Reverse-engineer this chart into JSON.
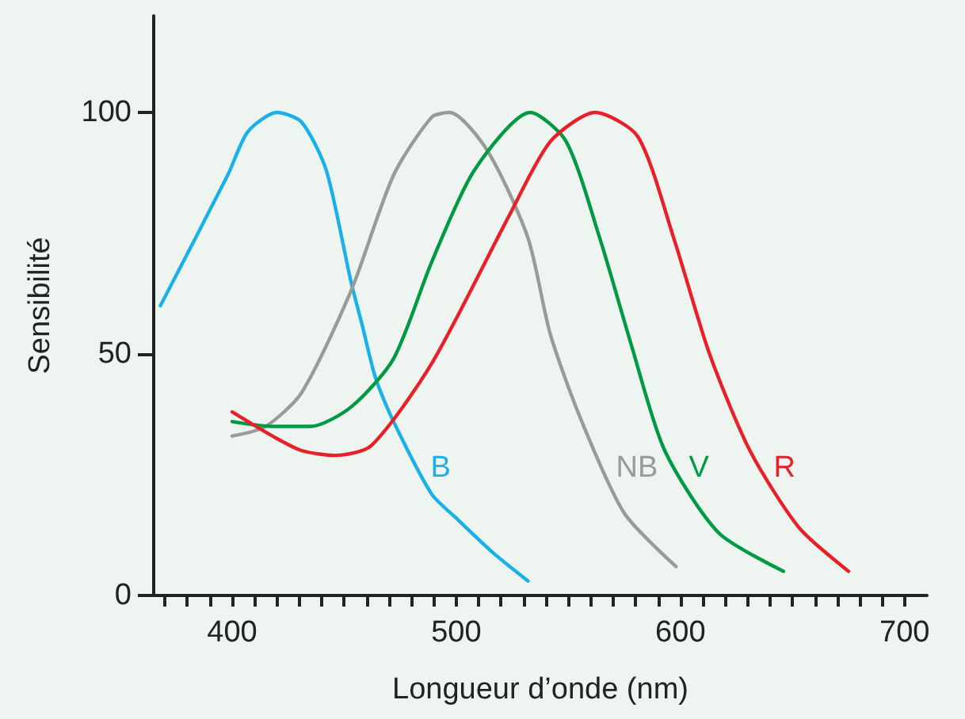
{
  "chart_data": {
    "type": "line",
    "xlabel": "Longueur d’onde (nm)",
    "ylabel": "Sensibilité",
    "xlim": [
      365,
      710
    ],
    "ylim": [
      0,
      120
    ],
    "yticks": [
      0,
      50,
      100
    ],
    "xticks": [
      {
        "value": 370,
        "label": null
      },
      {
        "value": 380,
        "label": null
      },
      {
        "value": 390,
        "label": null
      },
      400,
      {
        "value": 410,
        "label": null
      },
      {
        "value": 420,
        "label": null
      },
      {
        "value": 430,
        "label": null
      },
      {
        "value": 440,
        "label": null
      },
      {
        "value": 450,
        "label": null
      },
      {
        "value": 460,
        "label": null
      },
      {
        "value": 470,
        "label": null
      },
      {
        "value": 480,
        "label": null
      },
      {
        "value": 490,
        "label": null
      },
      500,
      {
        "value": 510,
        "label": null
      },
      {
        "value": 520,
        "label": null
      },
      {
        "value": 530,
        "label": null
      },
      {
        "value": 540,
        "label": null
      },
      {
        "value": 550,
        "label": null
      },
      {
        "value": 560,
        "label": null
      },
      {
        "value": 570,
        "label": null
      },
      {
        "value": 580,
        "label": null
      },
      {
        "value": 590,
        "label": null
      },
      600,
      {
        "value": 610,
        "label": null
      },
      {
        "value": 620,
        "label": null
      },
      {
        "value": 630,
        "label": null
      },
      {
        "value": 640,
        "label": null
      },
      {
        "value": 650,
        "label": null
      },
      {
        "value": 660,
        "label": null
      },
      {
        "value": 670,
        "label": null
      },
      {
        "value": 680,
        "label": null
      },
      {
        "value": 690,
        "label": null
      },
      700
    ],
    "grid": false,
    "legend": false,
    "marker": "none",
    "line_style": "solid",
    "series": [
      {
        "name": "B",
        "color": "#1ab0ea",
        "x": [
          368,
          398,
          407,
          420,
          431,
          442,
          453,
          458,
          464,
          472,
          489,
          500,
          516,
          532
        ],
        "values": [
          60,
          87,
          96,
          100,
          98,
          88,
          65,
          56,
          45,
          36,
          21,
          16,
          9,
          3
        ]
      },
      {
        "name": "NB",
        "color": "#9a9a9a",
        "x": [
          400,
          415,
          431,
          453,
          472,
          489,
          497,
          514,
          532,
          542,
          556,
          575,
          598
        ],
        "values": [
          33,
          35,
          42,
          63,
          87,
          99,
          100,
          92,
          74,
          54,
          36,
          17,
          6
        ]
      },
      {
        "name": "V",
        "color": "#009a44",
        "x": [
          400,
          418,
          435,
          453,
          472,
          489,
          508,
          533,
          549,
          564,
          578,
          593,
          617,
          646
        ],
        "values": [
          36,
          35,
          35,
          39,
          49,
          69,
          88,
          100,
          94,
          74,
          52,
          30,
          13,
          5
        ]
      },
      {
        "name": "R",
        "color": "#e8202a",
        "x": [
          400,
          418,
          431,
          446,
          462,
          489,
          524,
          542,
          562,
          581,
          597,
          613,
          631,
          653,
          675
        ],
        "values": [
          38,
          33,
          30,
          29,
          31,
          48,
          79,
          94,
          100,
          95,
          74,
          50,
          30,
          14,
          5
        ]
      }
    ]
  }
}
